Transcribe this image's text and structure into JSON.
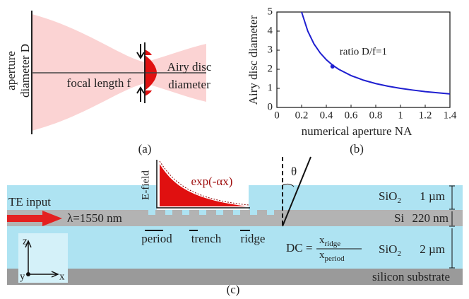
{
  "panel_a": {
    "aperture_line1": "aperture",
    "aperture_line2": "diameter D",
    "focal_length": "focal length f",
    "airy_line1": "Airy disc",
    "airy_line2": "diameter",
    "label": "(a)"
  },
  "chart_data": {
    "type": "line",
    "x_label": "numerical aperture NA",
    "y_label": "Airy disc diameter",
    "label": "(b)",
    "x": [
      0.2,
      0.25,
      0.3,
      0.35,
      0.4,
      0.45,
      0.5,
      0.6,
      0.7,
      0.8,
      0.9,
      1.0,
      1.1,
      1.2,
      1.3,
      1.4
    ],
    "series": [
      {
        "name": "Airy disc diameter",
        "color": "#1f1fd0",
        "values": [
          5,
          4,
          3.33,
          2.86,
          2.5,
          2.22,
          2,
          1.67,
          1.43,
          1.25,
          1.11,
          1,
          0.91,
          0.83,
          0.77,
          0.71
        ]
      }
    ],
    "annotation": {
      "text": "ratio D/f=1",
      "x": 0.45,
      "y": 2.15
    },
    "xlim": [
      0,
      1.4
    ],
    "xticks": [
      0,
      0.2,
      0.4,
      0.6,
      0.8,
      1,
      1.2,
      1.4
    ],
    "ylim": [
      0,
      5
    ],
    "yticks": [
      0,
      1,
      2,
      3,
      4,
      5
    ]
  },
  "panel_c": {
    "te_input": "TE input",
    "wavelength": "λ=1550 nm",
    "efield": "E-field",
    "decay": "exp(-αx)",
    "theta": "θ",
    "top_oxide": {
      "name": "SiO",
      "sub": "2",
      "thickness": "1 µm"
    },
    "si": {
      "name": "Si",
      "thickness": "220 nm"
    },
    "bottom_oxide": {
      "name": "SiO",
      "sub": "2",
      "thickness": "2 µm"
    },
    "substrate": "silicon substrate",
    "period": "period",
    "trench": "trench",
    "ridge": "ridge",
    "dc": {
      "lhs": "DC =",
      "num": "x",
      "num_sub": "ridge",
      "den": "x",
      "den_sub": "period"
    },
    "axes": {
      "z": "z",
      "y": "y",
      "x": "x"
    },
    "label": "(c)"
  }
}
